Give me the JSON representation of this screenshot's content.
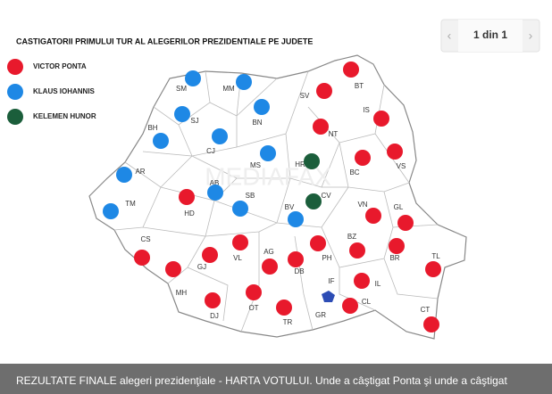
{
  "title": "CASTIGATORII PRIMULUI TUR AL ALEGERILOR PREZIDENTIALE PE JUDETE",
  "pager": "1 din 1",
  "legend": [
    {
      "label": "VICTOR PONTA",
      "color": "#e8192c"
    },
    {
      "label": "KLAUS IOHANNIS",
      "color": "#1e88e5"
    },
    {
      "label": "KELEMEN HUNOR",
      "color": "#1b5e3b"
    }
  ],
  "counties": [
    {
      "label": "SM",
      "color": "#1e88e5"
    },
    {
      "label": "MM",
      "color": "#1e88e5"
    },
    {
      "label": "BN",
      "color": "#1e88e5"
    },
    {
      "label": "SJ",
      "color": "#1e88e5"
    },
    {
      "label": "BH",
      "color": "#1e88e5"
    },
    {
      "label": "CJ",
      "color": "#1e88e5"
    },
    {
      "label": "MS",
      "color": "#1e88e5"
    },
    {
      "label": "AR",
      "color": "#1e88e5"
    },
    {
      "label": "TM",
      "color": "#1e88e5"
    },
    {
      "label": "HD",
      "color": "#e8192c"
    },
    {
      "label": "AB",
      "color": "#1e88e5"
    },
    {
      "label": "SB",
      "color": "#1e88e5"
    },
    {
      "label": "BV",
      "color": "#1e88e5"
    },
    {
      "label": "HR",
      "color": "#1b5e3b"
    },
    {
      "label": "CV",
      "color": "#1b5e3b"
    },
    {
      "label": "SV",
      "color": "#e8192c"
    },
    {
      "label": "BT",
      "color": "#e8192c"
    },
    {
      "label": "IS",
      "color": "#e8192c"
    },
    {
      "label": "NT",
      "color": "#e8192c"
    },
    {
      "label": "BC",
      "color": "#e8192c"
    },
    {
      "label": "VS",
      "color": "#e8192c"
    },
    {
      "label": "VN",
      "color": "#e8192c"
    },
    {
      "label": "GL",
      "color": "#e8192c"
    },
    {
      "label": "BZ",
      "color": "#e8192c"
    },
    {
      "label": "BR",
      "color": "#e8192c"
    },
    {
      "label": "TL",
      "color": "#e8192c"
    },
    {
      "label": "CS",
      "color": "#e8192c"
    },
    {
      "label": "GJ",
      "color": "#e8192c"
    },
    {
      "label": "VL",
      "color": "#e8192c"
    },
    {
      "label": "AG",
      "color": "#e8192c"
    },
    {
      "label": "PH",
      "color": "#e8192c"
    },
    {
      "label": "DB",
      "color": "#e8192c"
    },
    {
      "label": "MH",
      "color": "#e8192c"
    },
    {
      "label": "DJ",
      "color": "#e8192c"
    },
    {
      "label": "OT",
      "color": "#e8192c"
    },
    {
      "label": "TR",
      "color": "#e8192c"
    },
    {
      "label": "IF",
      "color": null
    },
    {
      "label": "IL",
      "color": "#e8192c"
    },
    {
      "label": "CL",
      "color": "#e8192c"
    },
    {
      "label": "GR",
      "color": null
    },
    {
      "label": "CT",
      "color": "#e8192c"
    }
  ],
  "caption": "REZULTATE FINALE alegeri prezidenţiale - HARTA VOTULUI. Unde a câştigat Ponta şi unde a câştigat"
}
